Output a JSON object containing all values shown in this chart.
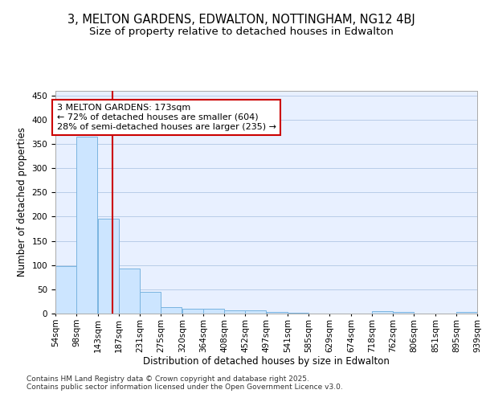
{
  "title_line1": "3, MELTON GARDENS, EDWALTON, NOTTINGHAM, NG12 4BJ",
  "title_line2": "Size of property relative to detached houses in Edwalton",
  "xlabel": "Distribution of detached houses by size in Edwalton",
  "ylabel": "Number of detached properties",
  "bar_color": "#cce5ff",
  "bar_edge_color": "#7ab4e0",
  "background_color": "#e8f0ff",
  "grid_color": "#b8cce8",
  "vline_x": 173,
  "vline_color": "#cc0000",
  "annotation_line1": "3 MELTON GARDENS: 173sqm",
  "annotation_line2": "← 72% of detached houses are smaller (604)",
  "annotation_line3": "28% of semi-detached houses are larger (235) →",
  "annotation_box_color": "#cc0000",
  "footer_text": "Contains HM Land Registry data © Crown copyright and database right 2025.\nContains public sector information licensed under the Open Government Licence v3.0.",
  "bins": [
    54,
    98,
    143,
    187,
    231,
    275,
    320,
    364,
    408,
    452,
    497,
    541,
    585,
    629,
    674,
    718,
    762,
    806,
    851,
    895,
    939
  ],
  "counts": [
    98,
    365,
    195,
    93,
    45,
    14,
    10,
    10,
    7,
    6,
    3,
    2,
    0,
    0,
    0,
    5,
    4,
    0,
    0,
    3
  ],
  "ylim": [
    0,
    460
  ],
  "yticks": [
    0,
    50,
    100,
    150,
    200,
    250,
    300,
    350,
    400,
    450
  ],
  "title_fontsize": 10.5,
  "subtitle_fontsize": 9.5,
  "axis_label_fontsize": 8.5,
  "tick_fontsize": 7.5,
  "annotation_fontsize": 8,
  "footer_fontsize": 6.5
}
